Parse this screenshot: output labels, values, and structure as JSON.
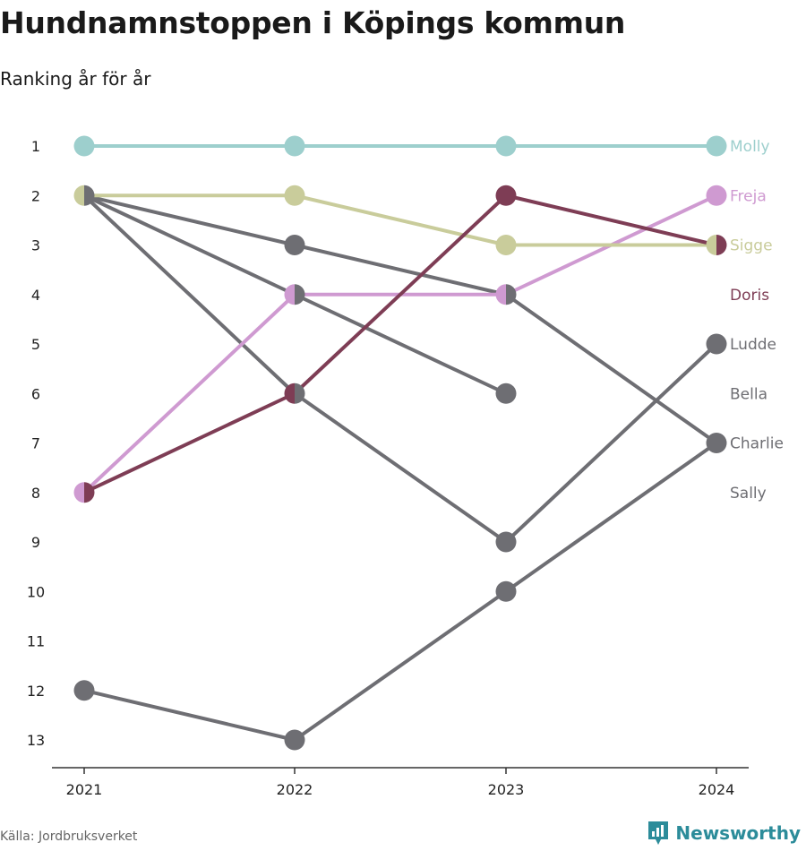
{
  "title": "Hundnamnstoppen i Köpings kommun",
  "subtitle": "Ranking år för år",
  "source": "Källa: Jordbruksverket",
  "brand": "Newsworthy",
  "chart_data": {
    "type": "line",
    "x": [
      "2021",
      "2022",
      "2023",
      "2024"
    ],
    "y_ticks": [
      1,
      2,
      3,
      4,
      5,
      6,
      7,
      8,
      9,
      10,
      11,
      12,
      13
    ],
    "y_reversed": true,
    "series": [
      {
        "name": "Molly",
        "color": "#9dcfcd",
        "values": [
          1,
          1,
          1,
          1
        ]
      },
      {
        "name": "Freja",
        "color": "#cf9ad1",
        "values": [
          8,
          4,
          4,
          2
        ]
      },
      {
        "name": "Sigge",
        "color": "#c9cc9b",
        "values": [
          2,
          2,
          3,
          3
        ]
      },
      {
        "name": "Doris",
        "color": "#7e3d55",
        "values": [
          8,
          6,
          2,
          3
        ]
      },
      {
        "name": "Ludde",
        "color": "#6e6e73",
        "values": [
          2,
          6,
          9,
          5
        ]
      },
      {
        "name": "Bella",
        "color": "#6e6e73",
        "values": [
          2,
          3,
          4,
          7
        ]
      },
      {
        "name": "Charlie",
        "color": "#6e6e73",
        "values": [
          12,
          13,
          10,
          7
        ]
      },
      {
        "name": "Sally",
        "color": "#6e6e73",
        "values": [
          2,
          4,
          6,
          null
        ]
      }
    ],
    "end_labels": [
      "Molly",
      "Freja",
      "Sigge",
      "Doris",
      "Ludde",
      "Bella",
      "Charlie",
      "Sally"
    ],
    "end_label_ranks": [
      1,
      2,
      3,
      4,
      5,
      6,
      7,
      8
    ],
    "end_label_colors": [
      "#9dcfcd",
      "#cf9ad1",
      "#c9cc9b",
      "#7e3d55",
      "#6e6e73",
      "#6e6e73",
      "#6e6e73",
      "#6e6e73"
    ]
  }
}
